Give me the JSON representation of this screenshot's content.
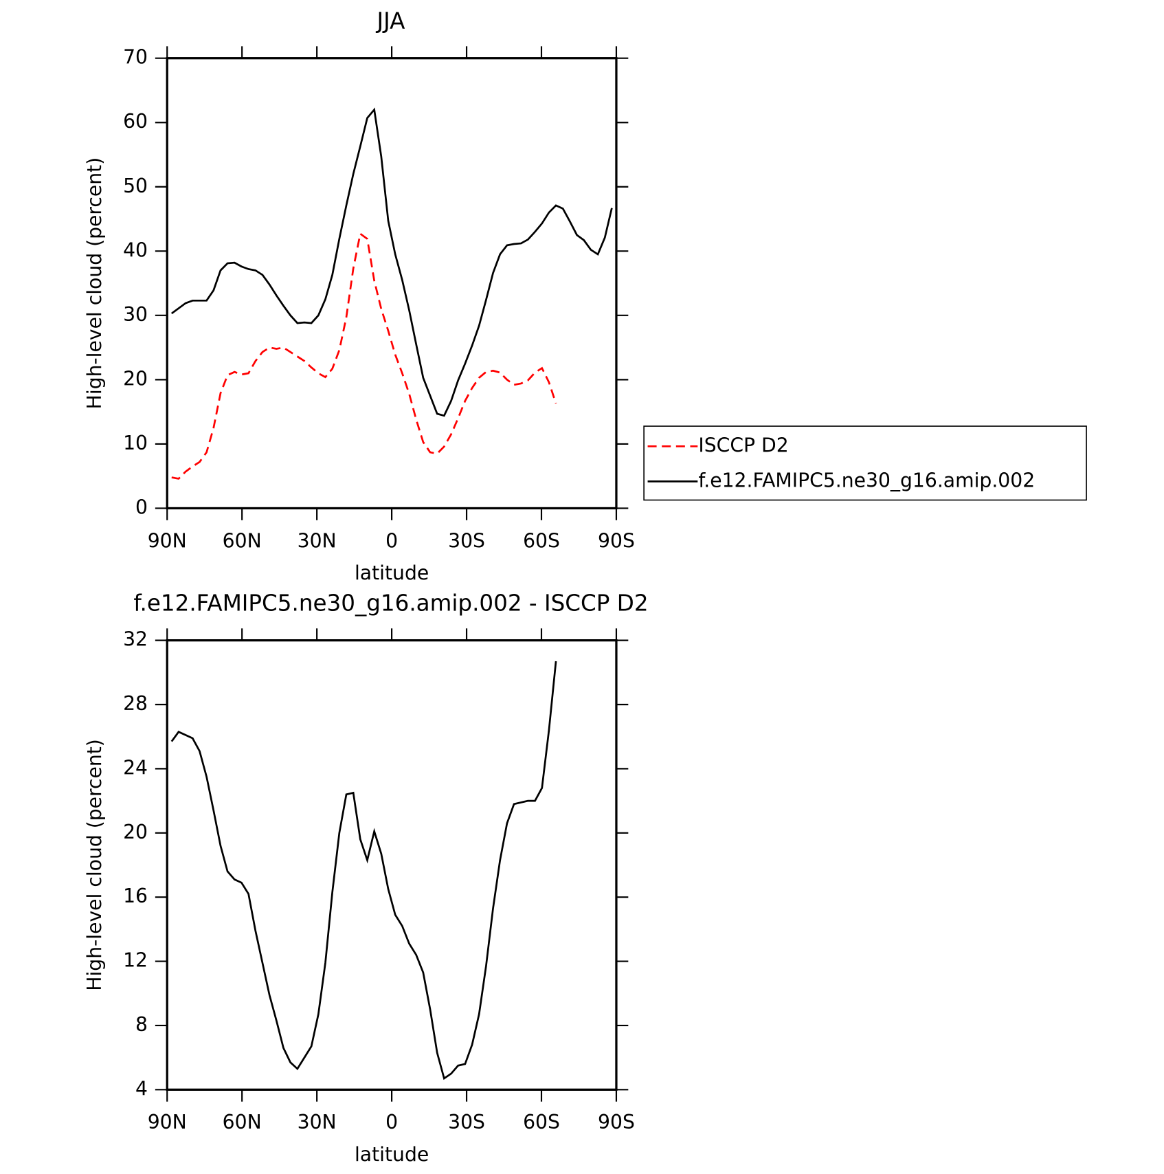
{
  "chart_data": [
    {
      "type": "line",
      "title": "JJA",
      "x_label": "latitude",
      "y_label": "High-level cloud (percent)",
      "x": [
        88.2,
        85.4,
        82.6,
        79.8,
        77.0,
        74.2,
        71.4,
        68.6,
        65.8,
        63.0,
        60.2,
        57.4,
        54.6,
        51.8,
        49.0,
        46.2,
        43.4,
        40.6,
        37.8,
        35.0,
        32.2,
        29.4,
        26.6,
        23.8,
        21.0,
        18.2,
        15.4,
        12.6,
        9.8,
        7.0,
        4.2,
        1.4,
        -1.4,
        -4.2,
        -7.0,
        -9.8,
        -12.6,
        -15.4,
        -18.2,
        -21.0,
        -23.8,
        -26.6,
        -29.4,
        -32.2,
        -35.0,
        -37.8,
        -40.6,
        -43.4,
        -46.2,
        -49.0,
        -51.8,
        -54.6,
        -57.4,
        -60.2,
        -63.0,
        -65.8,
        -68.6,
        -71.4,
        -74.2,
        -77.0,
        -79.8,
        -82.6,
        -85.4,
        -88.2
      ],
      "xlim": [
        90,
        -90
      ],
      "xticks": [
        {
          "value": 90,
          "label": "90N"
        },
        {
          "value": 60,
          "label": "60N"
        },
        {
          "value": 30,
          "label": "30N"
        },
        0,
        {
          "value": -30,
          "label": "30S"
        },
        {
          "value": -60,
          "label": "60S"
        },
        {
          "value": -90,
          "label": "90S"
        }
      ],
      "ylim": [
        0,
        70
      ],
      "yticks": [
        0,
        10,
        20,
        30,
        40,
        50,
        60,
        70
      ],
      "legend": "right",
      "series": [
        {
          "name": "ISCCP D2",
          "color": "#ff0000",
          "linestyle": "dashed",
          "values": [
            4.8,
            4.6,
            5.7,
            6.5,
            7.2,
            8.7,
            12.5,
            17.9,
            20.7,
            21.2,
            20.8,
            21.0,
            22.9,
            24.3,
            25.0,
            24.8,
            25.0,
            24.3,
            23.6,
            22.9,
            21.9,
            21.0,
            20.4,
            21.7,
            24.6,
            29.7,
            37.3,
            42.7,
            41.9,
            35.4,
            31.0,
            27.6,
            23.9,
            21.0,
            17.8,
            13.8,
            10.3,
            8.7,
            8.5,
            9.6,
            11.5,
            14.0,
            16.7,
            18.7,
            20.3,
            21.2,
            21.4,
            21.1,
            20.0,
            19.2,
            19.4,
            19.9,
            21.1,
            21.8,
            19.6,
            16.3,
            null,
            null,
            null,
            null,
            null,
            null,
            null,
            null
          ]
        },
        {
          "name": "f.e12.FAMIPC5.ne30_g16.amip.002",
          "color": "#000000",
          "linestyle": "solid",
          "values": [
            30.3,
            31.1,
            31.9,
            32.3,
            32.3,
            32.3,
            33.9,
            37.0,
            38.1,
            38.2,
            37.6,
            37.2,
            37.0,
            36.3,
            34.8,
            33.1,
            31.5,
            30.0,
            28.8,
            28.9,
            28.8,
            30.0,
            32.5,
            36.3,
            41.9,
            47.1,
            52.0,
            56.3,
            60.7,
            62.0,
            54.7,
            44.7,
            39.5,
            35.5,
            30.8,
            25.5,
            20.3,
            17.5,
            14.7,
            14.4,
            16.7,
            19.9,
            22.5,
            25.3,
            28.4,
            32.4,
            36.6,
            39.5,
            40.9,
            41.1,
            41.2,
            41.8,
            43.0,
            44.3,
            46.0,
            47.1,
            46.6,
            44.6,
            42.5,
            41.7,
            40.2,
            39.5,
            42.1,
            46.7
          ]
        }
      ]
    },
    {
      "type": "line",
      "title": "f.e12.FAMIPC5.ne30_g16.amip.002 - ISCCP D2",
      "x_label": "latitude",
      "y_label": "High-level cloud (percent)",
      "x": [
        88.2,
        85.4,
        82.6,
        79.8,
        77.0,
        74.2,
        71.4,
        68.6,
        65.8,
        63.0,
        60.2,
        57.4,
        54.6,
        51.8,
        49.0,
        46.2,
        43.4,
        40.6,
        37.8,
        35.0,
        32.2,
        29.4,
        26.6,
        23.8,
        21.0,
        18.2,
        15.4,
        12.6,
        9.8,
        7.0,
        4.2,
        1.4,
        -1.4,
        -4.2,
        -7.0,
        -9.8,
        -12.6,
        -15.4,
        -18.2,
        -21.0,
        -23.8,
        -26.6,
        -29.4,
        -32.2,
        -35.0,
        -37.8,
        -40.6,
        -43.4,
        -46.2,
        -49.0,
        -51.8,
        -54.6,
        -57.4,
        -60.2,
        -63.0,
        -65.8,
        -68.6,
        -71.4,
        -74.2,
        -77.0,
        -79.8,
        -82.6,
        -85.4,
        -88.2
      ],
      "xlim": [
        90,
        -90
      ],
      "xticks": [
        {
          "value": 90,
          "label": "90N"
        },
        {
          "value": 60,
          "label": "60N"
        },
        {
          "value": 30,
          "label": "30N"
        },
        0,
        {
          "value": -30,
          "label": "30S"
        },
        {
          "value": -60,
          "label": "60S"
        },
        {
          "value": -90,
          "label": "90S"
        }
      ],
      "ylim": [
        4,
        32
      ],
      "yticks": [
        4,
        8,
        12,
        16,
        20,
        24,
        28,
        32
      ],
      "series": [
        {
          "color": "#000000",
          "linestyle": "solid",
          "values": [
            25.7,
            26.3,
            26.1,
            25.9,
            25.1,
            23.5,
            21.4,
            19.2,
            17.6,
            17.1,
            16.9,
            16.2,
            13.9,
            11.9,
            9.9,
            8.3,
            6.6,
            5.7,
            5.3,
            6.0,
            6.7,
            8.7,
            11.9,
            16.3,
            20.0,
            22.4,
            22.5,
            19.6,
            18.3,
            20.1,
            18.7,
            16.5,
            14.9,
            14.2,
            13.1,
            12.4,
            11.3,
            9.0,
            6.3,
            4.7,
            5.0,
            5.5,
            5.6,
            6.8,
            8.7,
            11.7,
            15.3,
            18.3,
            20.6,
            21.8,
            21.9,
            22.0,
            22.0,
            22.8,
            26.4,
            30.7,
            null,
            null,
            null,
            null,
            null,
            null,
            null,
            null
          ]
        }
      ]
    }
  ]
}
